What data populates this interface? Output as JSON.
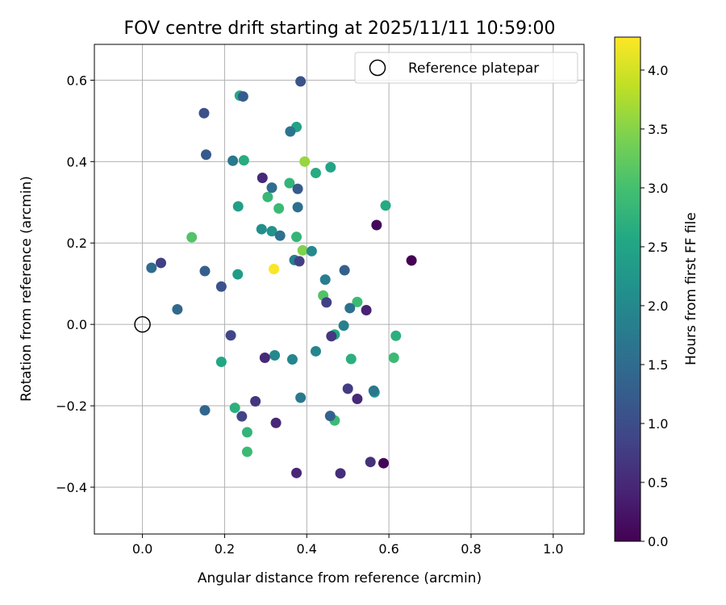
{
  "chart_data": {
    "type": "scatter",
    "title": "FOV centre drift starting at 2025/11/11 10:59:00",
    "xlabel": "Angular distance from reference (arcmin)",
    "ylabel": "Rotation from reference (arcmin)",
    "xlim": [
      -0.117,
      1.075
    ],
    "ylim": [
      -0.515,
      0.688
    ],
    "xticks": [
      0.0,
      0.2,
      0.4,
      0.6,
      0.8,
      1.0
    ],
    "xtick_labels": [
      "0.0",
      "0.2",
      "0.4",
      "0.6",
      "0.8",
      "1.0"
    ],
    "yticks": [
      -0.4,
      -0.2,
      0.0,
      0.2,
      0.4,
      0.6
    ],
    "ytick_labels": [
      "−0.4",
      "−0.2",
      "0.0",
      "0.2",
      "0.4",
      "0.6"
    ],
    "grid": true,
    "legend": {
      "position": "top-right",
      "label": "Reference platepar"
    },
    "reference_point": {
      "x": 0.0,
      "y": 0.0
    },
    "colorbar": {
      "label": "Hours from first FF file",
      "min": 0.0,
      "max": 4.28,
      "colormap": "viridis",
      "ticks": [
        0.0,
        0.5,
        1.0,
        1.5,
        2.0,
        2.5,
        3.0,
        3.5,
        4.0
      ],
      "tick_labels": [
        "0.0",
        "0.5",
        "1.0",
        "1.5",
        "2.0",
        "2.5",
        "3.0",
        "3.5",
        "4.0"
      ]
    },
    "points": [
      {
        "x": 0.32,
        "y": 0.136,
        "c": 4.25
      },
      {
        "x": 0.395,
        "y": 0.4,
        "c": 3.6
      },
      {
        "x": 0.39,
        "y": 0.182,
        "c": 3.45
      },
      {
        "x": 0.12,
        "y": 0.214,
        "c": 3.1
      },
      {
        "x": 0.44,
        "y": 0.071,
        "c": 3.1
      },
      {
        "x": 0.255,
        "y": -0.313,
        "c": 2.9
      },
      {
        "x": 0.523,
        "y": 0.055,
        "c": 2.9
      },
      {
        "x": 0.468,
        "y": -0.236,
        "c": 2.9
      },
      {
        "x": 0.332,
        "y": 0.285,
        "c": 2.9
      },
      {
        "x": 0.612,
        "y": -0.082,
        "c": 2.9
      },
      {
        "x": 0.305,
        "y": 0.313,
        "c": 2.85
      },
      {
        "x": 0.358,
        "y": 0.347,
        "c": 2.8
      },
      {
        "x": 0.255,
        "y": -0.265,
        "c": 2.8
      },
      {
        "x": 0.375,
        "y": 0.215,
        "c": 2.8
      },
      {
        "x": 0.225,
        "y": -0.205,
        "c": 2.7
      },
      {
        "x": 0.617,
        "y": -0.028,
        "c": 2.7
      },
      {
        "x": 0.508,
        "y": -0.085,
        "c": 2.7
      },
      {
        "x": 0.247,
        "y": 0.403,
        "c": 2.65
      },
      {
        "x": 0.237,
        "y": 0.562,
        "c": 2.6
      },
      {
        "x": 0.592,
        "y": 0.292,
        "c": 2.6
      },
      {
        "x": 0.422,
        "y": 0.372,
        "c": 2.6
      },
      {
        "x": 0.192,
        "y": -0.092,
        "c": 2.55
      },
      {
        "x": 0.468,
        "y": -0.025,
        "c": 2.55
      },
      {
        "x": 0.458,
        "y": 0.386,
        "c": 2.5
      },
      {
        "x": 0.375,
        "y": 0.485,
        "c": 2.45
      },
      {
        "x": 0.233,
        "y": 0.29,
        "c": 2.4
      },
      {
        "x": 0.232,
        "y": 0.123,
        "c": 2.35
      },
      {
        "x": 0.565,
        "y": -0.167,
        "c": 2.3
      },
      {
        "x": 0.315,
        "y": 0.229,
        "c": 2.2
      },
      {
        "x": 0.29,
        "y": 0.234,
        "c": 2.1
      },
      {
        "x": 0.322,
        "y": -0.076,
        "c": 2.0
      },
      {
        "x": 0.412,
        "y": 0.18,
        "c": 2.0
      },
      {
        "x": 0.365,
        "y": -0.086,
        "c": 1.95
      },
      {
        "x": 0.422,
        "y": -0.066,
        "c": 1.95
      },
      {
        "x": 0.49,
        "y": -0.003,
        "c": 1.85
      },
      {
        "x": 0.445,
        "y": 0.11,
        "c": 1.8
      },
      {
        "x": 0.37,
        "y": 0.158,
        "c": 1.8
      },
      {
        "x": 0.385,
        "y": -0.18,
        "c": 1.75
      },
      {
        "x": 0.563,
        "y": -0.163,
        "c": 1.7
      },
      {
        "x": 0.22,
        "y": 0.402,
        "c": 1.7
      },
      {
        "x": 0.36,
        "y": 0.474,
        "c": 1.65
      },
      {
        "x": 0.505,
        "y": 0.04,
        "c": 1.6
      },
      {
        "x": 0.335,
        "y": 0.218,
        "c": 1.6
      },
      {
        "x": 0.378,
        "y": 0.288,
        "c": 1.55
      },
      {
        "x": 0.022,
        "y": 0.139,
        "c": 1.5
      },
      {
        "x": 0.315,
        "y": 0.336,
        "c": 1.5
      },
      {
        "x": 0.085,
        "y": 0.037,
        "c": 1.45
      },
      {
        "x": 0.152,
        "y": -0.211,
        "c": 1.4
      },
      {
        "x": 0.457,
        "y": -0.225,
        "c": 1.35
      },
      {
        "x": 0.492,
        "y": 0.133,
        "c": 1.3
      },
      {
        "x": 0.152,
        "y": 0.131,
        "c": 1.3
      },
      {
        "x": 0.245,
        "y": 0.56,
        "c": 1.25
      },
      {
        "x": 0.378,
        "y": 0.333,
        "c": 1.2
      },
      {
        "x": 0.155,
        "y": 0.417,
        "c": 1.2
      },
      {
        "x": 0.192,
        "y": 0.093,
        "c": 1.1
      },
      {
        "x": 0.385,
        "y": 0.597,
        "c": 1.1
      },
      {
        "x": 0.15,
        "y": 0.519,
        "c": 1.05
      },
      {
        "x": 0.215,
        "y": -0.027,
        "c": 0.9
      },
      {
        "x": 0.242,
        "y": -0.226,
        "c": 0.85
      },
      {
        "x": 0.448,
        "y": 0.054,
        "c": 0.8
      },
      {
        "x": 0.045,
        "y": 0.151,
        "c": 0.8
      },
      {
        "x": 0.382,
        "y": 0.155,
        "c": 0.8
      },
      {
        "x": 0.5,
        "y": -0.158,
        "c": 0.75
      },
      {
        "x": 0.46,
        "y": -0.029,
        "c": 0.7
      },
      {
        "x": 0.275,
        "y": -0.189,
        "c": 0.65
      },
      {
        "x": 0.555,
        "y": -0.338,
        "c": 0.6
      },
      {
        "x": 0.482,
        "y": -0.366,
        "c": 0.55
      },
      {
        "x": 0.523,
        "y": -0.183,
        "c": 0.5
      },
      {
        "x": 0.298,
        "y": -0.082,
        "c": 0.5
      },
      {
        "x": 0.325,
        "y": -0.242,
        "c": 0.5
      },
      {
        "x": 0.292,
        "y": 0.36,
        "c": 0.5
      },
      {
        "x": 0.375,
        "y": -0.365,
        "c": 0.45
      },
      {
        "x": 0.545,
        "y": 0.035,
        "c": 0.4
      },
      {
        "x": 0.57,
        "y": 0.244,
        "c": 0.1
      },
      {
        "x": 0.587,
        "y": -0.341,
        "c": 0.05
      },
      {
        "x": 0.655,
        "y": 0.157,
        "c": 0.0
      }
    ]
  }
}
